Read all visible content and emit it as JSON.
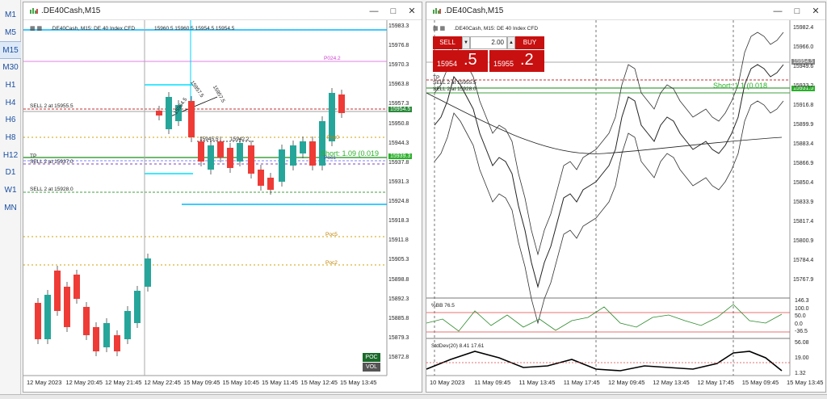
{
  "timeframes": [
    "M1",
    "M5",
    "M15",
    "M30",
    "H1",
    "H4",
    "H6",
    "H8",
    "H12",
    "D1",
    "W1",
    "MN"
  ],
  "active_timeframe": "M15",
  "left": {
    "window_title": ".DE40Cash,M15",
    "header": ".DE40Cash, M15:  DE 40 Index CFD",
    "header_values": "15960.5 15960.5 15954.5 15954.5",
    "price_axis": [
      "15983.3",
      "15976.8",
      "15970.3",
      "15963.8",
      "15957.3",
      "15950.8",
      "15944.3",
      "15937.8",
      "15931.3",
      "15924.8",
      "15918.3",
      "15911.8",
      "15905.3",
      "15898.8",
      "15892.3",
      "15885.8",
      "15879.3",
      "15872.8"
    ],
    "price_tag_bid": "15954.5",
    "price_tag_ask": "15939.3",
    "levels": {
      "poc1": "P024.2",
      "sell_a": "SELL 2 at 15955.5",
      "tp": "TP",
      "sell_b": "SELL 2 at 15937.0",
      "sell_c": "SELL 2 at 15928.0",
      "poc_small": "Poc0",
      "poc2": "Poc1",
      "poc3": "Poc5",
      "poc4": "Poc2",
      "short": "Short: 1.09  (0.019",
      "trend_a": "15964.5",
      "trend_b": "15957.5",
      "trend_c": "15957.5",
      "mid_a": "15945.5",
      "mid_b": "15942.2",
      "mid_c": "15954.5"
    },
    "x_axis": [
      "12 May 2023",
      "12 May 20:45",
      "12 May 21:45",
      "12 May 22:45",
      "15 May 09:45",
      "15 May 10:45",
      "15 May 11:45",
      "15 May 12:45",
      "15 May 13:45"
    ],
    "poc_btn": "POC",
    "vol_btn": "VOL"
  },
  "right": {
    "window_title": ".DE40Cash,M15",
    "header": ".DE40Cash, M15:  DE 40 Index CFD",
    "sell_label": "SELL",
    "buy_label": "BUY",
    "lot": "2.00",
    "sell_price_main": "15954",
    "sell_price_big": ".5",
    "buy_price_main": "15955",
    "buy_price_big": ".2",
    "tp_label": "TP",
    "sell_a": "SELL 2 at 15955.5",
    "sell_b": "SELL 2 at 15928.0",
    "short_label": "Short: 1.1 (0.018",
    "price_axis": [
      "15982.4",
      "15966.0",
      "15949.6",
      "15933.2",
      "15916.8",
      "15899.9",
      "15883.4",
      "15866.9",
      "15850.4",
      "15833.9",
      "15817.4",
      "15800.9",
      "15784.4",
      "15767.9"
    ],
    "price_tag_bid": "15954.5",
    "price_tag_ask": "15931.5",
    "bb_label": "%BB 76.5",
    "bb_axis": [
      "146.3",
      "100.0",
      "50.0",
      "0.0",
      "-36.5"
    ],
    "std_label": "StdDev(20) 8.41 17.61",
    "std_axis": [
      "56.08",
      "19.00",
      "1.32"
    ],
    "x_axis": [
      "10 May 2023",
      "11 May 09:45",
      "11 May 13:45",
      "11 May 17:45",
      "12 May 09:45",
      "12 May 13:45",
      "12 May 17:45",
      "15 May 09:45",
      "15 May 13:45"
    ]
  }
}
